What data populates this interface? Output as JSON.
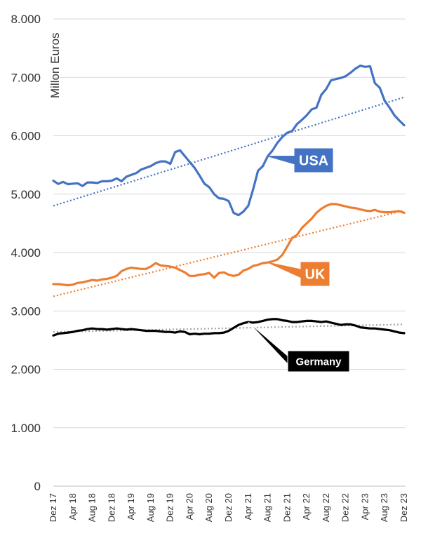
{
  "chart_data": {
    "type": "line",
    "ylabel": "Millon Euros",
    "ylim": [
      0,
      8000
    ],
    "yticks": [
      0,
      1000,
      2000,
      3000,
      4000,
      5000,
      6000,
      7000,
      8000
    ],
    "ytick_labels": [
      "0",
      "1.000",
      "2.000",
      "3.000",
      "4.000",
      "5.000",
      "6.000",
      "7.000",
      "8.000"
    ],
    "x_labels": [
      "Dez 17",
      "Apr 18",
      "Aug 18",
      "Dez 18",
      "Apr 19",
      "Aug 19",
      "Dez 19",
      "Apr 20",
      "Aug 20",
      "Dez 20",
      "Apr 21",
      "Aug 21",
      "Dez 21",
      "Apr 22",
      "Aug 22",
      "Dez 22",
      "Apr 23",
      "Aug 23",
      "Dez 23"
    ],
    "grid": "horizontal",
    "legend": "callout labels",
    "series": [
      {
        "name": "USA",
        "color": "#4472c4",
        "values": [
          5230,
          5175,
          5210,
          5170,
          5180,
          5185,
          5140,
          5200,
          5200,
          5190,
          5220,
          5220,
          5230,
          5270,
          5220,
          5300,
          5330,
          5360,
          5420,
          5450,
          5480,
          5530,
          5560,
          5560,
          5520,
          5720,
          5750,
          5650,
          5550,
          5450,
          5320,
          5180,
          5120,
          5000,
          4930,
          4920,
          4880,
          4680,
          4640,
          4700,
          4800,
          5080,
          5400,
          5480,
          5650,
          5750,
          5880,
          5980,
          6050,
          6080,
          6200,
          6270,
          6350,
          6450,
          6480,
          6700,
          6800,
          6950,
          6970,
          6990,
          7020,
          7080,
          7150,
          7200,
          7180,
          7190,
          6900,
          6820,
          6600,
          6480,
          6350,
          6260,
          6180
        ],
        "trend": [
          4800,
          6660
        ]
      },
      {
        "name": "UK",
        "color": "#ed7d31",
        "values": [
          3460,
          3460,
          3450,
          3440,
          3450,
          3480,
          3490,
          3510,
          3530,
          3520,
          3540,
          3550,
          3570,
          3600,
          3680,
          3720,
          3740,
          3730,
          3720,
          3720,
          3760,
          3820,
          3780,
          3770,
          3760,
          3740,
          3700,
          3660,
          3600,
          3600,
          3620,
          3630,
          3650,
          3570,
          3650,
          3660,
          3620,
          3600,
          3620,
          3690,
          3720,
          3770,
          3790,
          3820,
          3830,
          3850,
          3880,
          3960,
          4100,
          4250,
          4300,
          4420,
          4500,
          4580,
          4680,
          4750,
          4800,
          4830,
          4830,
          4810,
          4790,
          4770,
          4760,
          4740,
          4720,
          4710,
          4730,
          4700,
          4690,
          4690,
          4700,
          4710,
          4680
        ],
        "trend": [
          3250,
          4720
        ]
      },
      {
        "name": "Germany",
        "color": "#000000",
        "values": [
          2580,
          2610,
          2620,
          2630,
          2640,
          2660,
          2670,
          2690,
          2700,
          2690,
          2690,
          2680,
          2690,
          2700,
          2690,
          2680,
          2690,
          2680,
          2670,
          2660,
          2660,
          2660,
          2650,
          2640,
          2640,
          2630,
          2650,
          2640,
          2600,
          2610,
          2600,
          2610,
          2610,
          2620,
          2620,
          2630,
          2660,
          2710,
          2760,
          2790,
          2810,
          2800,
          2810,
          2830,
          2850,
          2860,
          2860,
          2840,
          2830,
          2810,
          2810,
          2820,
          2830,
          2830,
          2820,
          2810,
          2820,
          2800,
          2780,
          2760,
          2770,
          2770,
          2750,
          2720,
          2710,
          2700,
          2700,
          2690,
          2680,
          2670,
          2650,
          2630,
          2620
        ],
        "trend": [
          2640,
          2770
        ]
      }
    ],
    "callouts": [
      {
        "text": "USA",
        "color": "#4472c4",
        "series": "USA"
      },
      {
        "text": "UK",
        "color": "#ed7d31",
        "series": "UK"
      },
      {
        "text": "Germany",
        "color": "#000000",
        "series": "Germany"
      }
    ]
  }
}
